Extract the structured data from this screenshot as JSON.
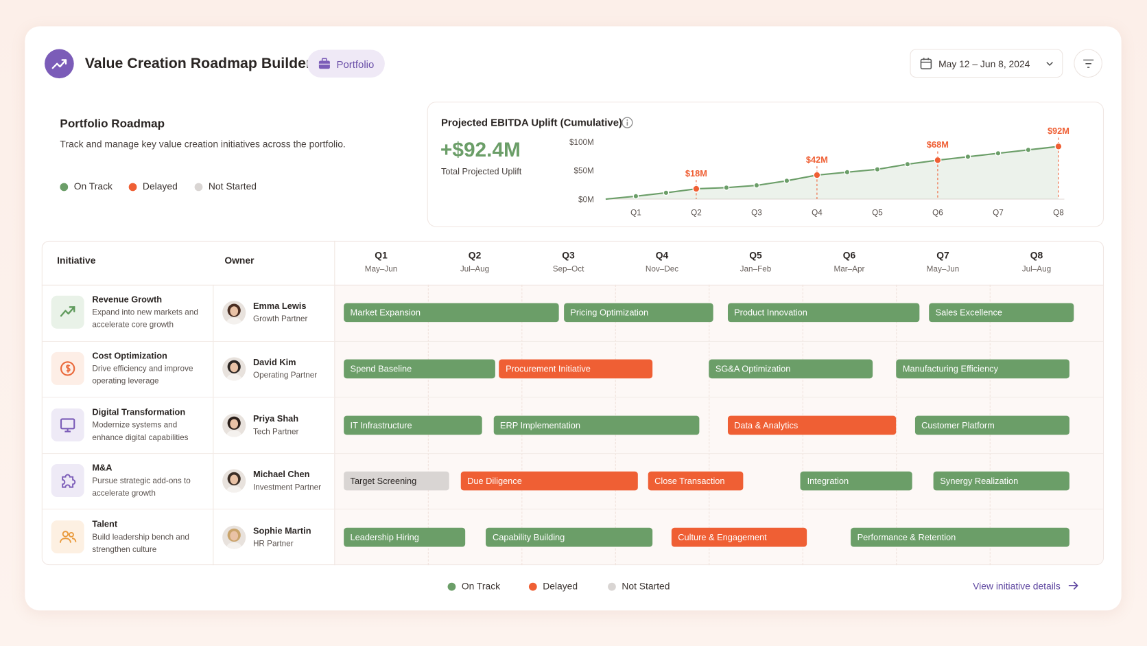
{
  "header": {
    "title": "Value Creation Roadmap Builder",
    "badge": "Portfolio",
    "date_range": "May 12 – Jun 8, 2024"
  },
  "summary": {
    "title": "Portfolio Roadmap",
    "description": "Track and manage key value creation initiatives across the portfolio."
  },
  "legend": [
    {
      "name": "On Track",
      "color": "#6b9e68"
    },
    {
      "name": "Delayed",
      "color": "#ef5f34"
    },
    {
      "name": "Not Started",
      "color": "#d9d5d3"
    }
  ],
  "chart_data": {
    "type": "line",
    "title": "Projected EBITDA Uplift (Cumulative)",
    "headline": "+$92.4M",
    "headline_caption": "Total Projected Uplift",
    "x": [
      0.5,
      1,
      1.5,
      2,
      2.5,
      3,
      3.5,
      4,
      4.5,
      5,
      5.5,
      6,
      6.5,
      7,
      7.5,
      8
    ],
    "series": [
      {
        "name": "Projected EBITDA Uplift",
        "color": "#6b9e68",
        "values": [
          0,
          5,
          11,
          18,
          20,
          24,
          32,
          42,
          47,
          52,
          61,
          68,
          74,
          80,
          86,
          92
        ],
        "value_labels": [
          null,
          null,
          null,
          "$18M",
          null,
          null,
          null,
          "$42M",
          null,
          null,
          null,
          "$68M",
          null,
          null,
          null,
          "$92M"
        ]
      }
    ],
    "xlim": [
      0.5,
      8
    ],
    "xticks": [
      {
        "value": 1,
        "label": "Q1"
      },
      {
        "value": 2,
        "label": "Q2"
      },
      {
        "value": 3,
        "label": "Q3"
      },
      {
        "value": 4,
        "label": "Q4"
      },
      {
        "value": 5,
        "label": "Q5"
      },
      {
        "value": 6,
        "label": "Q6"
      },
      {
        "value": 7,
        "label": "Q7"
      },
      {
        "value": 8,
        "label": "Q8"
      }
    ],
    "ylim": [
      0,
      110
    ],
    "yticks": [
      {
        "value": 0,
        "label": "$0M"
      },
      {
        "value": 50,
        "label": "$50M"
      },
      {
        "value": 100,
        "label": "$100M"
      }
    ],
    "grid": false,
    "highlight_color": "#ef5f34"
  },
  "table": {
    "columns": [
      "Initiative",
      "Owner"
    ],
    "quarters": [
      {
        "name": "Q1",
        "months": "May–Jun"
      },
      {
        "name": "Q2",
        "months": "Jul–Aug"
      },
      {
        "name": "Q3",
        "months": "Sep–Oct"
      },
      {
        "name": "Q4",
        "months": "Nov–Dec"
      },
      {
        "name": "Q5",
        "months": "Jan–Feb"
      },
      {
        "name": "Q6",
        "months": "Mar–Apr"
      },
      {
        "name": "Q7",
        "months": "May–Jun"
      },
      {
        "name": "Q8",
        "months": "Jul–Aug"
      }
    ],
    "rows": [
      {
        "name": "Revenue Growth",
        "description": "Expand into new markets and accelerate core growth",
        "owner": "Emma Lewis",
        "role": "Growth Partner",
        "bars": [
          {
            "label": "Market Expansion",
            "start": 0.1,
            "end": 2.4,
            "status": "On Track"
          },
          {
            "label": "Pricing Optimization",
            "start": 2.45,
            "end": 4.05,
            "status": "On Track"
          },
          {
            "label": "Product Innovation",
            "start": 4.2,
            "end": 6.25,
            "status": "On Track"
          },
          {
            "label": "Sales Excellence",
            "start": 6.35,
            "end": 7.9,
            "status": "On Track"
          }
        ]
      },
      {
        "name": "Cost Optimization",
        "description": "Drive efficiency and improve operating leverage",
        "owner": "David Kim",
        "role": "Operating Partner",
        "bars": [
          {
            "label": "Spend Baseline",
            "start": 0.1,
            "end": 1.72,
            "status": "On Track"
          },
          {
            "label": "Procurement Initiative",
            "start": 1.76,
            "end": 3.4,
            "status": "Delayed"
          },
          {
            "label": "SG&A Optimization",
            "start": 4.0,
            "end": 5.75,
            "status": "On Track"
          },
          {
            "label": "Manufacturing Efficiency",
            "start": 6.0,
            "end": 7.85,
            "status": "On Track"
          }
        ]
      },
      {
        "name": "Digital Transformation",
        "description": "Modernize systems and enhance digital capabilities",
        "owner": "Priya Shah",
        "role": "Tech Partner",
        "bars": [
          {
            "label": "IT Infrastructure",
            "start": 0.1,
            "end": 1.58,
            "status": "On Track"
          },
          {
            "label": "ERP Implementation",
            "start": 1.7,
            "end": 3.9,
            "status": "On Track"
          },
          {
            "label": "Data & Analytics",
            "start": 4.2,
            "end": 6.0,
            "status": "Delayed"
          },
          {
            "label": "Customer Platform",
            "start": 6.2,
            "end": 7.85,
            "status": "On Track"
          }
        ]
      },
      {
        "name": "M&A",
        "description": "Pursue strategic add-ons to accelerate growth",
        "owner": "Michael Chen",
        "role": "Investment Partner",
        "bars": [
          {
            "label": "Target Screening",
            "start": 0.1,
            "end": 1.23,
            "status": "Not Started"
          },
          {
            "label": "Due Diligence",
            "start": 1.35,
            "end": 3.24,
            "status": "Delayed"
          },
          {
            "label": "Close Transaction",
            "start": 3.35,
            "end": 4.37,
            "status": "Delayed"
          },
          {
            "label": "Integration",
            "start": 4.98,
            "end": 6.17,
            "status": "On Track"
          },
          {
            "label": "Synergy Realization",
            "start": 6.4,
            "end": 7.85,
            "status": "On Track"
          }
        ]
      },
      {
        "name": "Talent",
        "description": "Build leadership bench and strengthen culture",
        "owner": "Sophie Martin",
        "role": "HR Partner",
        "bars": [
          {
            "label": "Leadership Hiring",
            "start": 0.1,
            "end": 1.4,
            "status": "On Track"
          },
          {
            "label": "Capability Building",
            "start": 1.62,
            "end": 3.4,
            "status": "On Track"
          },
          {
            "label": "Culture & Engagement",
            "start": 3.6,
            "end": 5.05,
            "status": "Delayed"
          },
          {
            "label": "Performance & Retention",
            "start": 5.515,
            "end": 7.85,
            "status": "On Track"
          }
        ]
      }
    ]
  },
  "footer": {
    "link": "View initiative details"
  }
}
